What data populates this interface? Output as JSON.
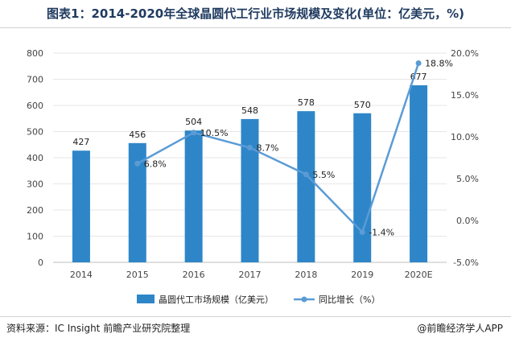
{
  "title": "图表1：2014-2020年全球晶圆代工行业市场规模及变化(单位：亿美元，%)",
  "source": "资料来源：IC Insight 前瞻产业研究院整理",
  "brand": "@前瞻经济学人APP",
  "colors": {
    "bar": "#2e86c8",
    "line": "#5b9bd5",
    "axis_text": "#444444",
    "grid": "#e6e6e6"
  },
  "chart_data": {
    "type": "bar",
    "categories": [
      "2014",
      "2015",
      "2016",
      "2017",
      "2018",
      "2019",
      "2020E"
    ],
    "series": [
      {
        "name": "晶圆代工市场规模（亿美元）",
        "type": "bar",
        "axis": "left",
        "values": [
          427,
          456,
          504,
          548,
          578,
          570,
          677
        ],
        "labels": [
          "427",
          "456",
          "504",
          "548",
          "578",
          "570",
          "677"
        ]
      },
      {
        "name": "同比增长（%）",
        "type": "line",
        "axis": "right",
        "values": [
          null,
          6.8,
          10.5,
          8.7,
          5.5,
          -1.4,
          18.8
        ],
        "labels": [
          "",
          "6.8%",
          "10.5%",
          "8.7%",
          "5.5%",
          "-1.4%",
          "18.8%"
        ]
      }
    ],
    "y_left": {
      "min": 0,
      "max": 800,
      "ticks": [
        "0",
        "100",
        "200",
        "300",
        "400",
        "500",
        "600",
        "700",
        "800"
      ]
    },
    "y_right": {
      "min": -5,
      "max": 20,
      "ticks": [
        "-5.0%",
        "0.0%",
        "5.0%",
        "10.0%",
        "15.0%",
        "20.0%"
      ]
    },
    "legend_position": "bottom",
    "grid": true
  }
}
